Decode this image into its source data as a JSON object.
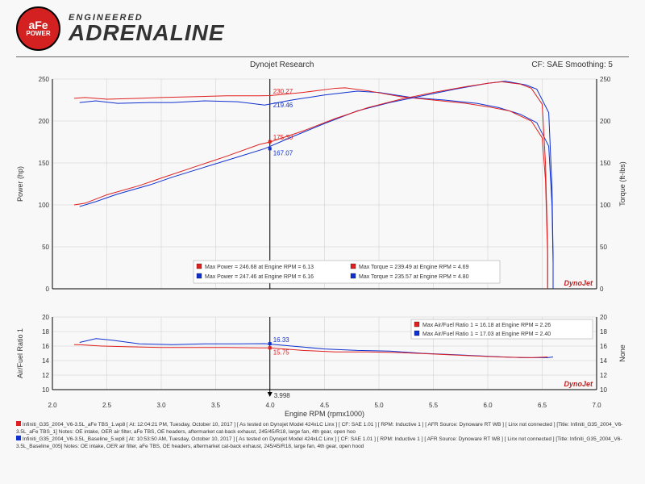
{
  "header": {
    "badge_top": "aFe",
    "badge_bottom": "POWER",
    "title_top": "ENGINEERED",
    "title_main": "ADRENALINE"
  },
  "chart_header": {
    "center": "Dynojet Research",
    "right": "CF: SAE Smoothing: 5"
  },
  "main_chart": {
    "type": "line",
    "xlim": [
      2.0,
      7.0
    ],
    "ylim": [
      0,
      250
    ],
    "xticks": [
      2.0,
      2.5,
      3.0,
      3.5,
      4.0,
      4.5,
      5.0,
      5.5,
      6.0,
      6.5,
      7.0
    ],
    "yticks": [
      0,
      50,
      100,
      150,
      200,
      250
    ],
    "right_yticks": [
      0,
      50,
      100,
      150,
      200,
      250
    ],
    "ylabel": "Power (hp)",
    "y2label": "Torque (ft-lbs)",
    "colors": {
      "red": "#e02020",
      "blue": "#1030d0"
    },
    "vline_x": 3.998,
    "annot": {
      "red_power": "175.30",
      "blue_power": "167.07",
      "red_torque": "230.27",
      "blue_torque": "219.46"
    },
    "legend": {
      "power_red": "Max Power = 246.68 at Engine RPM = 6.13",
      "power_blue": "Max Power = 247.46 at Engine RPM = 6.16",
      "torque_red": "Max Torque = 239.49 at Engine RPM = 4.69",
      "torque_blue": "Max Torque = 235.57 at Engine RPM = 4.80"
    },
    "power_red": [
      [
        2.2,
        100
      ],
      [
        2.3,
        102
      ],
      [
        2.5,
        112
      ],
      [
        2.8,
        123
      ],
      [
        3.0,
        132
      ],
      [
        3.3,
        145
      ],
      [
        3.6,
        158
      ],
      [
        3.9,
        172
      ],
      [
        4.0,
        175
      ],
      [
        4.3,
        188
      ],
      [
        4.6,
        203
      ],
      [
        4.9,
        216
      ],
      [
        5.2,
        226
      ],
      [
        5.5,
        234
      ],
      [
        5.8,
        241
      ],
      [
        6.0,
        245
      ],
      [
        6.13,
        246.7
      ],
      [
        6.3,
        244
      ],
      [
        6.4,
        239
      ],
      [
        6.5,
        220
      ],
      [
        6.53,
        150
      ],
      [
        6.55,
        50
      ],
      [
        6.55,
        0
      ]
    ],
    "power_blue": [
      [
        2.25,
        98
      ],
      [
        2.4,
        104
      ],
      [
        2.6,
        113
      ],
      [
        2.9,
        124
      ],
      [
        3.1,
        133
      ],
      [
        3.4,
        145
      ],
      [
        3.7,
        157
      ],
      [
        3.95,
        167
      ],
      [
        4.2,
        181
      ],
      [
        4.5,
        197
      ],
      [
        4.8,
        212
      ],
      [
        5.1,
        222
      ],
      [
        5.4,
        230
      ],
      [
        5.7,
        238
      ],
      [
        6.0,
        245
      ],
      [
        6.16,
        247.5
      ],
      [
        6.35,
        243
      ],
      [
        6.45,
        238
      ],
      [
        6.56,
        210
      ],
      [
        6.59,
        120
      ],
      [
        6.6,
        40
      ],
      [
        6.6,
        0
      ]
    ],
    "torque_red": [
      [
        2.2,
        227
      ],
      [
        2.3,
        228
      ],
      [
        2.5,
        226
      ],
      [
        2.8,
        227
      ],
      [
        3.0,
        228
      ],
      [
        3.3,
        229
      ],
      [
        3.6,
        230
      ],
      [
        3.9,
        230
      ],
      [
        4.0,
        230.3
      ],
      [
        4.3,
        234
      ],
      [
        4.6,
        239
      ],
      [
        4.69,
        239.5
      ],
      [
        4.9,
        236
      ],
      [
        5.2,
        229
      ],
      [
        5.5,
        225
      ],
      [
        5.8,
        221
      ],
      [
        6.0,
        217
      ],
      [
        6.2,
        212
      ],
      [
        6.4,
        200
      ],
      [
        6.5,
        180
      ],
      [
        6.53,
        130
      ],
      [
        6.55,
        40
      ],
      [
        6.55,
        0
      ]
    ],
    "torque_blue": [
      [
        2.25,
        222
      ],
      [
        2.4,
        224
      ],
      [
        2.6,
        221
      ],
      [
        2.9,
        222
      ],
      [
        3.1,
        222
      ],
      [
        3.4,
        224
      ],
      [
        3.7,
        223
      ],
      [
        3.95,
        219
      ],
      [
        4.2,
        225
      ],
      [
        4.5,
        231
      ],
      [
        4.8,
        235.6
      ],
      [
        5.0,
        234
      ],
      [
        5.3,
        228
      ],
      [
        5.6,
        225
      ],
      [
        5.9,
        221
      ],
      [
        6.1,
        216
      ],
      [
        6.3,
        208
      ],
      [
        6.45,
        198
      ],
      [
        6.56,
        170
      ],
      [
        6.59,
        100
      ],
      [
        6.6,
        30
      ],
      [
        6.6,
        0
      ]
    ]
  },
  "afr_chart": {
    "type": "line",
    "xlim": [
      2.0,
      7.0
    ],
    "ylim": [
      10,
      20
    ],
    "xticks": [
      2.0,
      2.5,
      3.0,
      3.5,
      4.0,
      4.5,
      5.0,
      5.5,
      6.0,
      6.5,
      7.0
    ],
    "yticks": [
      10,
      12,
      14,
      16,
      18,
      20
    ],
    "ylabel": "Air/Fuel Ratio 1",
    "y2label": "None",
    "xlabel": "Engine RPM (rpmx1000)",
    "vline_x": 3.998,
    "vline_label": "3.998",
    "annot": {
      "blue": "16.33",
      "red": "15.75"
    },
    "legend": {
      "red": "Max Air/Fuel Ratio 1 = 16.18 at Engine RPM = 2.26",
      "blue": "Max Air/Fuel Ratio 1 = 17.03 at Engine RPM = 2.40"
    },
    "red": [
      [
        2.2,
        16.2
      ],
      [
        2.26,
        16.18
      ],
      [
        2.45,
        16.0
      ],
      [
        2.7,
        15.9
      ],
      [
        3.0,
        15.8
      ],
      [
        3.3,
        15.8
      ],
      [
        3.6,
        15.8
      ],
      [
        3.9,
        15.75
      ],
      [
        4.0,
        15.75
      ],
      [
        4.3,
        15.4
      ],
      [
        4.6,
        15.2
      ],
      [
        4.9,
        15.2
      ],
      [
        5.2,
        15.1
      ],
      [
        5.5,
        14.9
      ],
      [
        5.8,
        14.7
      ],
      [
        6.1,
        14.5
      ],
      [
        6.4,
        14.4
      ],
      [
        6.55,
        14.5
      ]
    ],
    "blue": [
      [
        2.25,
        16.5
      ],
      [
        2.4,
        17.03
      ],
      [
        2.55,
        16.8
      ],
      [
        2.8,
        16.3
      ],
      [
        3.1,
        16.2
      ],
      [
        3.4,
        16.3
      ],
      [
        3.7,
        16.3
      ],
      [
        3.95,
        16.33
      ],
      [
        4.2,
        16.0
      ],
      [
        4.5,
        15.6
      ],
      [
        4.8,
        15.4
      ],
      [
        5.1,
        15.3
      ],
      [
        5.4,
        15.0
      ],
      [
        5.7,
        14.8
      ],
      [
        6.0,
        14.6
      ],
      [
        6.3,
        14.4
      ],
      [
        6.55,
        14.4
      ],
      [
        6.6,
        14.5
      ]
    ]
  },
  "dynojet_label": "DynoJet",
  "footer": {
    "red": "Infiniti_G35_2004_V6-3.5L_aFe TBS_1.wp8 [ At: 12:04:21 PM, Tuesday, October 10, 2017 ] [ As tested on Dynojet Model 424xLC Linx ] [ CF: SAE 1.01 ] [ RPM: Inductive 1 ] [ AFR Source: Dynoware RT WB ] [ Linx not connected ] [Title: Infiniti_G35_2004_V6-3.5L_aFe TBS_1]  Notes: OE intake, OER air filter, aFe TBS, OE headers, aftermarket cat-back exhaust, 245/45/R18, large fan, 4th gear, open hoo",
    "blue": "Infiniti_G35_2004_V6-3.5L_Baseline_5.wp8 [ At: 10:53:50 AM, Tuesday, October 10, 2017 ] [ As tested on Dynojet Model 424xLC Linx ] [ CF: SAE 1.01 ] [ RPM: Inductive 1 ] [ AFR Source: Dynoware RT WB ] [ Linx not connected ] [Title: Infiniti_G35_2004_V6-3.5L_Baseline_005]  Notes: OE intake, OER air filter, aFe TBS, OE headers, aftermarket cat-back exhaust, 245/45/R18, large fan, 4th gear, open hood"
  }
}
